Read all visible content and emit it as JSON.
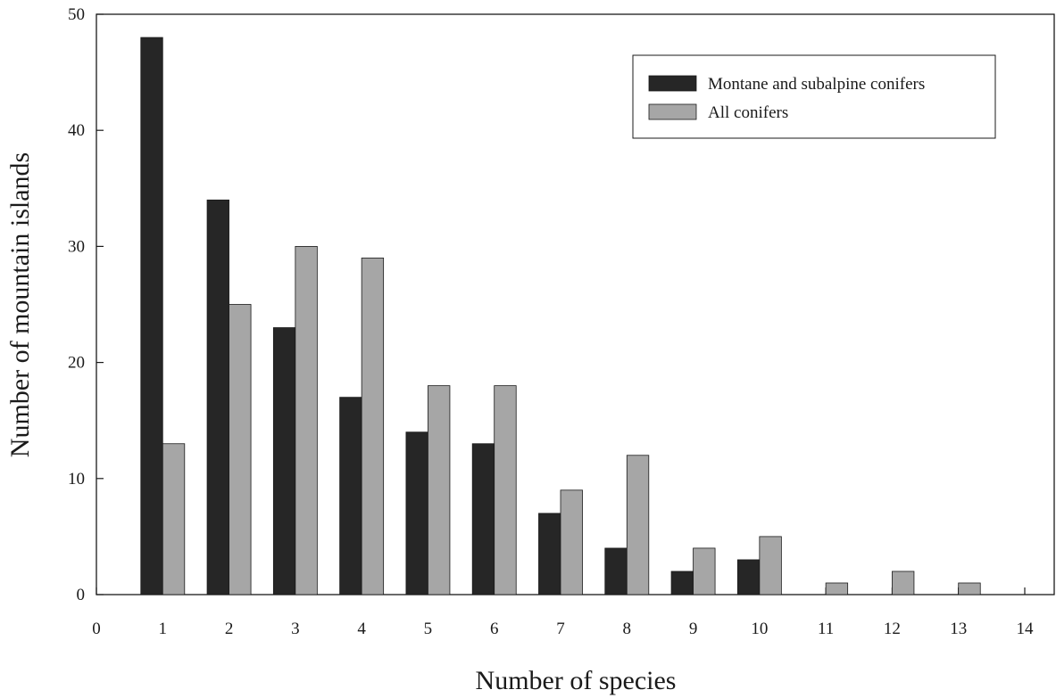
{
  "chart_data": {
    "type": "bar",
    "xlabel": "Number of species",
    "ylabel": "Number of mountain islands",
    "x_ticks": [
      0,
      1,
      2,
      3,
      4,
      5,
      6,
      7,
      8,
      9,
      10,
      11,
      12,
      13,
      14
    ],
    "y_ticks": [
      0,
      10,
      20,
      30,
      40,
      50
    ],
    "xlim": [
      0,
      14
    ],
    "ylim": [
      0,
      50
    ],
    "categories": [
      1,
      2,
      3,
      4,
      5,
      6,
      7,
      8,
      9,
      10,
      11,
      12,
      13
    ],
    "series": [
      {
        "name": "Montane and subalpine conifers",
        "color": "#262626",
        "values": [
          48,
          34,
          23,
          17,
          14,
          13,
          7,
          4,
          2,
          3,
          0,
          0,
          0
        ]
      },
      {
        "name": "All conifers",
        "color": "#a6a6a6",
        "values": [
          13,
          25,
          30,
          29,
          18,
          18,
          9,
          12,
          4,
          5,
          1,
          2,
          1
        ]
      }
    ],
    "legend_position": "top-right",
    "grid": false
  }
}
